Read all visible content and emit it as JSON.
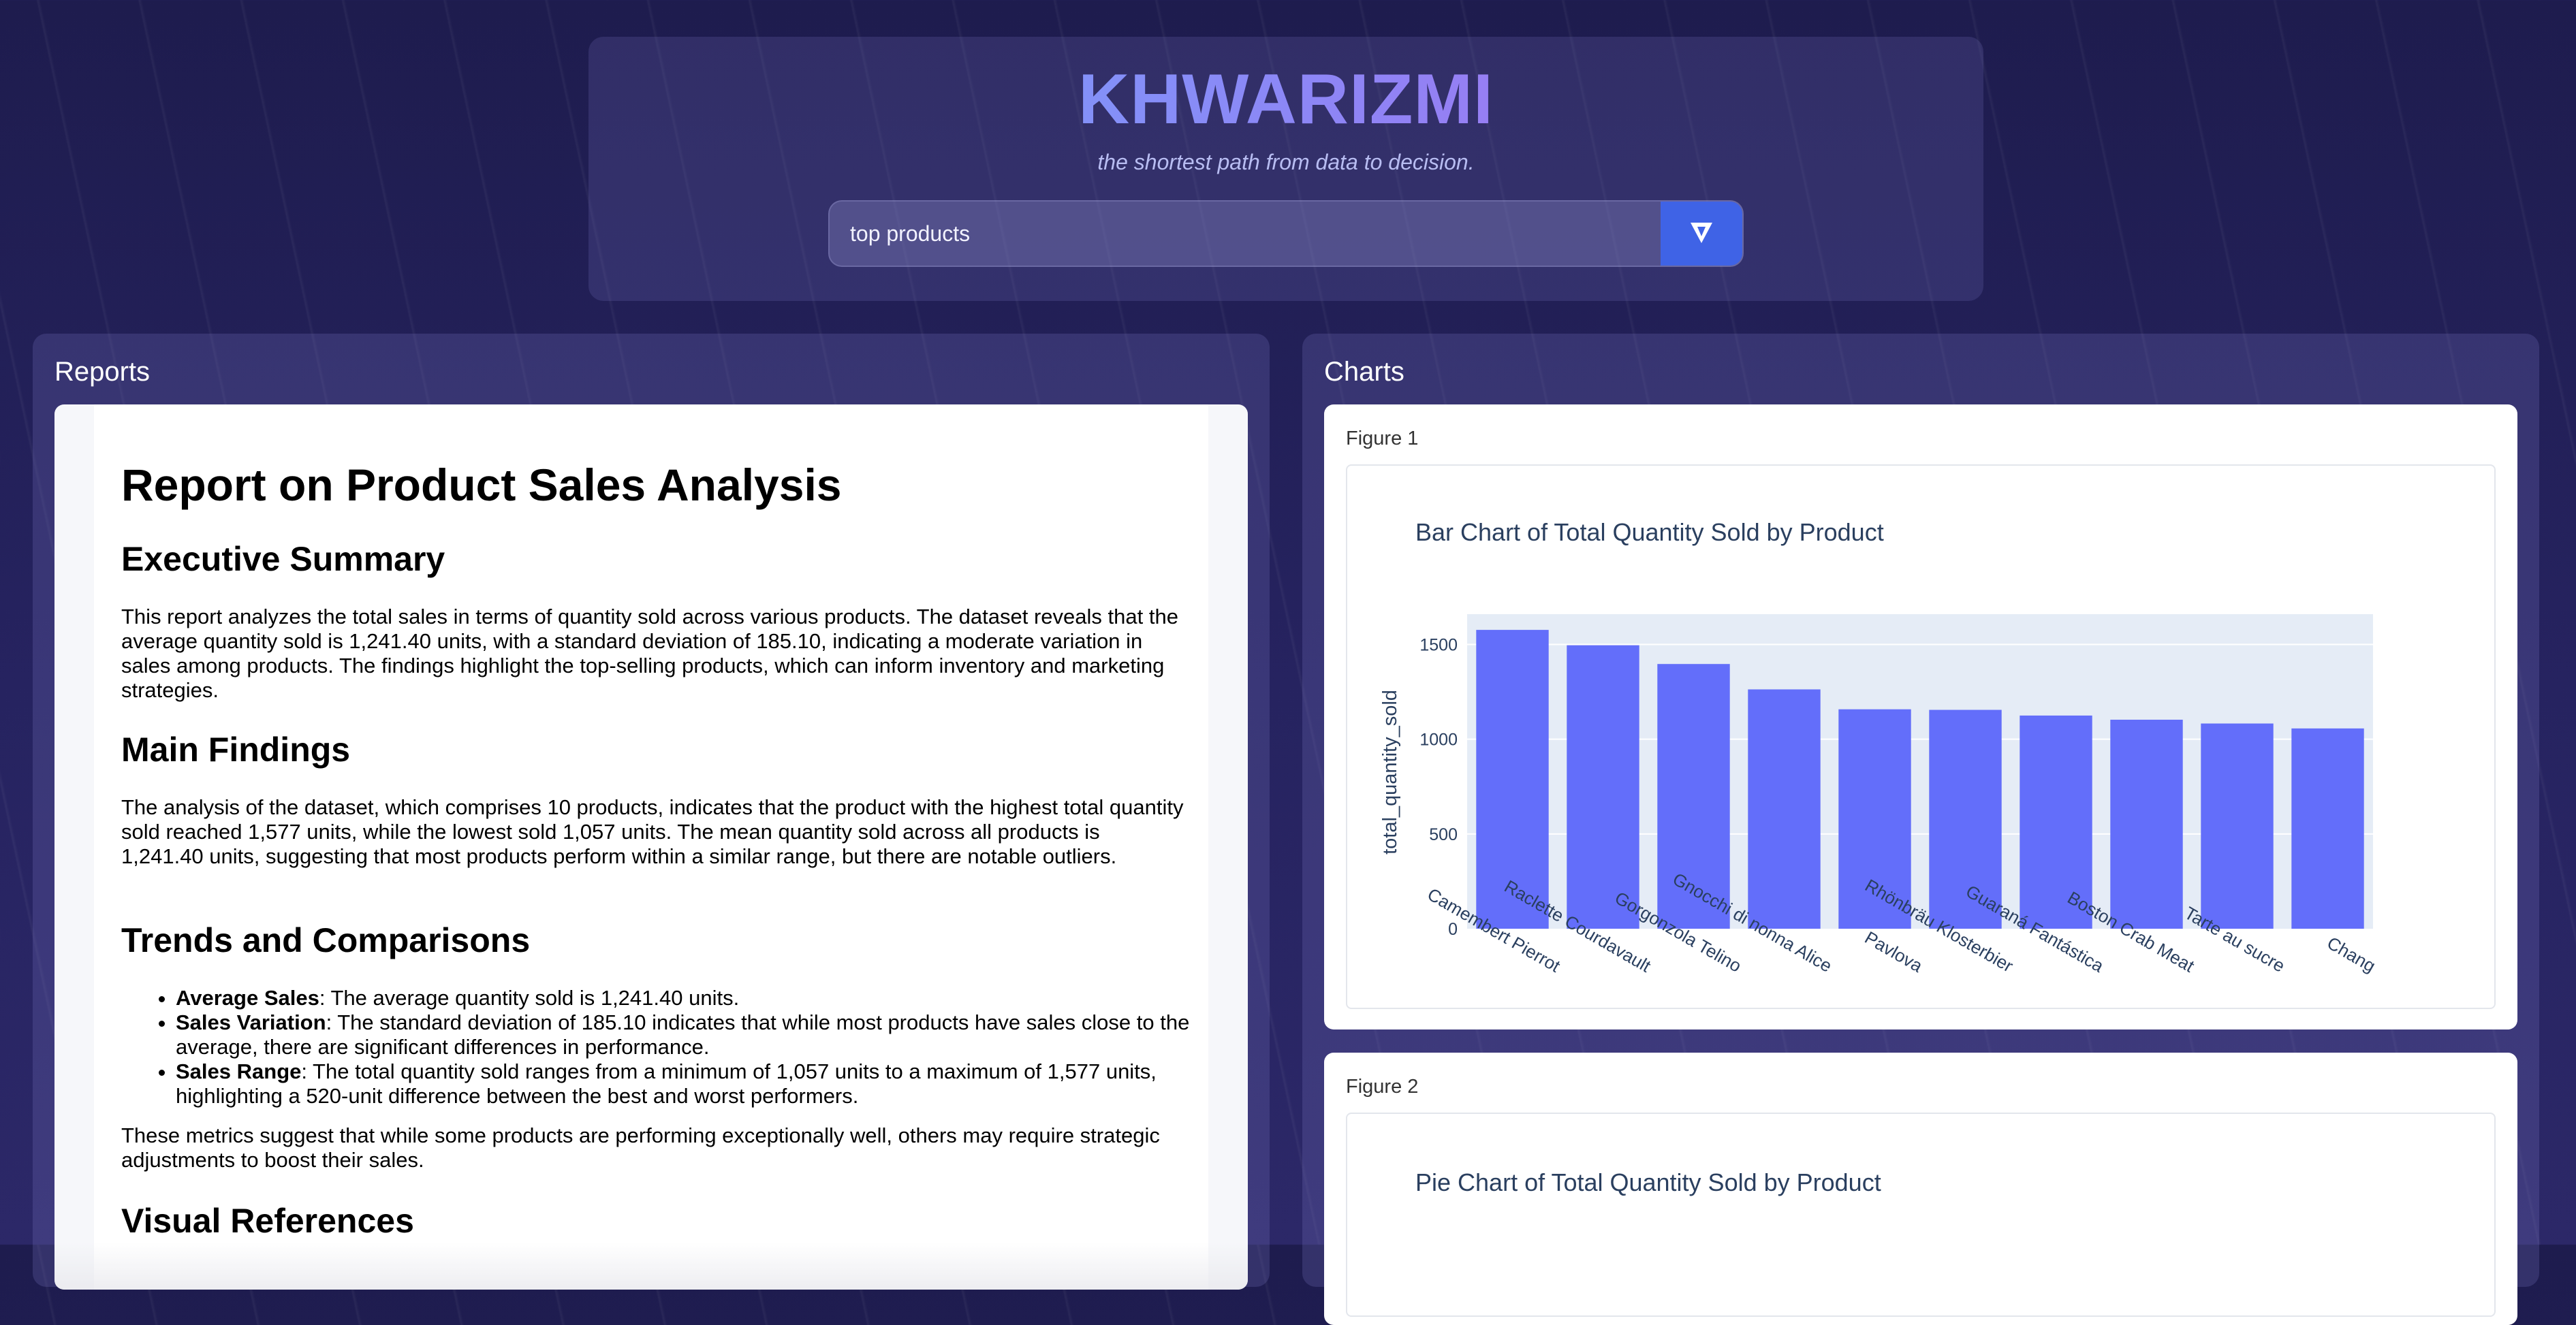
{
  "header": {
    "brand": "KHWARIZMI",
    "tagline": "the shortest path from data to decision.",
    "search_value": "top products",
    "search_button_icon": "send-icon"
  },
  "reports_panel": {
    "title": "Reports",
    "report": {
      "title": "Report on Product Sales Analysis",
      "exec_heading": "Executive Summary",
      "exec_text": "This report analyzes the total sales in terms of quantity sold across various products. The dataset reveals that the average quantity sold is 1,241.40 units, with a standard deviation of 185.10, indicating a moderate variation in sales among products. The findings highlight the top-selling products, which can inform inventory and marketing strategies.",
      "findings_heading": "Main Findings",
      "findings_text": "The analysis of the dataset, which comprises 10 products, indicates that the product with the highest total quantity sold reached 1,577 units, while the lowest sold 1,057 units. The mean quantity sold across all products is 1,241.40 units, suggesting that most products perform within a similar range, but there are notable outliers.",
      "trends_heading": "Trends and Comparisons",
      "bullets": [
        {
          "label": "Average Sales",
          "text": ": The average quantity sold is 1,241.40 units."
        },
        {
          "label": "Sales Variation",
          "text": ": The standard deviation of 185.10 indicates that while most products have sales close to the average, there are significant differences in performance."
        },
        {
          "label": "Sales Range",
          "text": ": The total quantity sold ranges from a minimum of 1,057 units to a maximum of 1,577 units, highlighting a 520-unit difference between the best and worst performers."
        }
      ],
      "metrics_text": "These metrics suggest that while some products are performing exceptionally well, others may require strategic adjustments to boost their sales.",
      "visual_heading": "Visual References"
    }
  },
  "charts_panel": {
    "title": "Charts",
    "figure1_label": "Figure 1",
    "figure2_label": "Figure 2",
    "figure2_title": "Pie Chart of Total Quantity Sold by Product"
  },
  "chart_data": [
    {
      "type": "bar",
      "title": "Bar Chart of Total Quantity Sold by Product",
      "ylabel": "total_quantity_sold",
      "xlabel": "",
      "categories": [
        "Camembert Pierrot",
        "Raclette Courdavault",
        "Gorgonzola Telino",
        "Gnocchi di nonna Alice",
        "Pavlova",
        "Rhönbräu Klosterbier",
        "Guaraná Fantástica",
        "Boston Crab Meat",
        "Tarte au sucre",
        "Chang"
      ],
      "values": [
        1577,
        1496,
        1397,
        1263,
        1158,
        1155,
        1125,
        1103,
        1083,
        1057
      ],
      "yticks": [
        0,
        500,
        1000,
        1500
      ],
      "ylim": [
        0,
        1660
      ],
      "color": "#636efa",
      "plot_bg": "#e5ecf6",
      "grid": true
    },
    {
      "type": "pie",
      "title": "Pie Chart of Total Quantity Sold by Product"
    }
  ]
}
